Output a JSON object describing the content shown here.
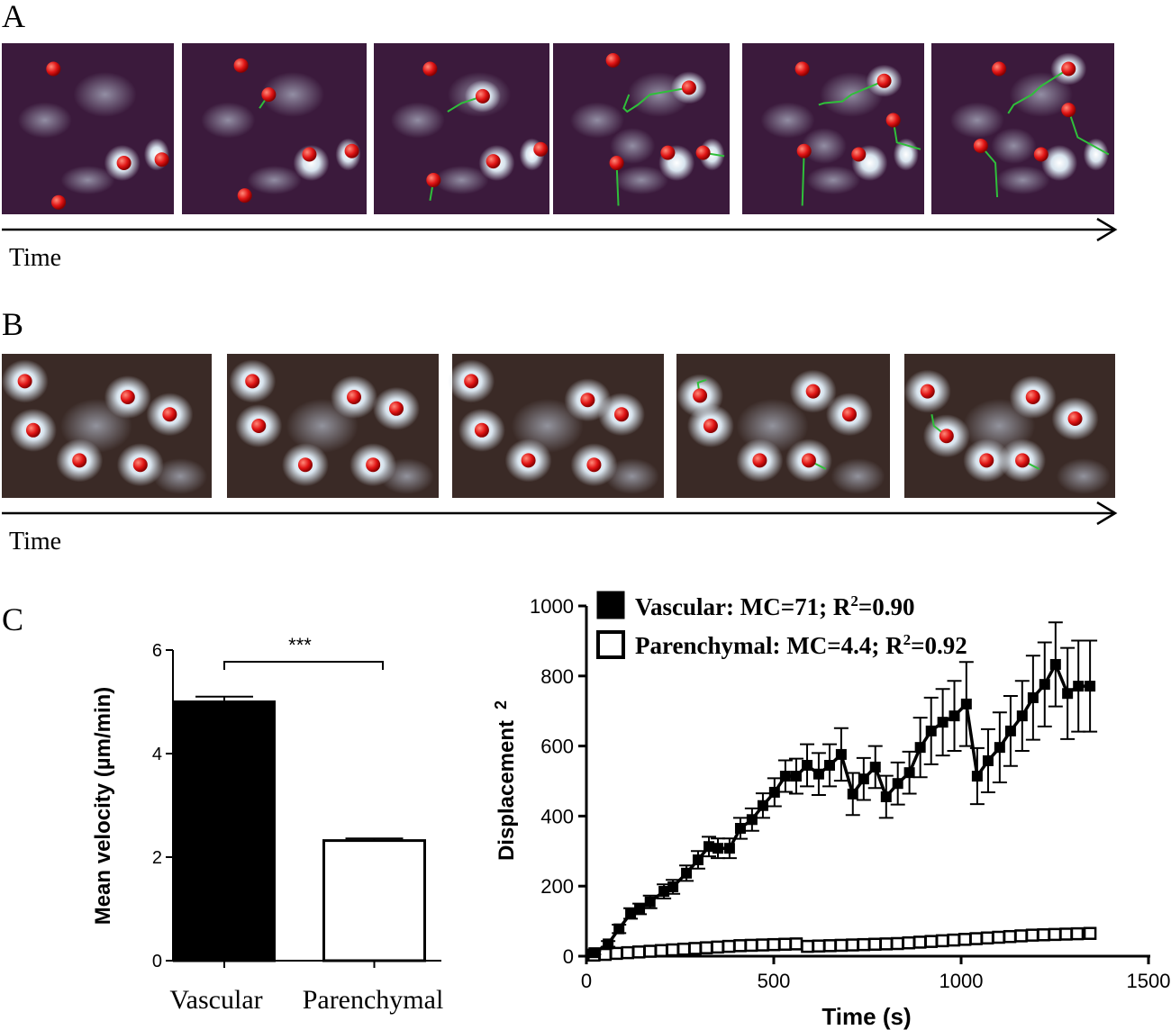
{
  "panel_labels": {
    "a": "A",
    "b": "B",
    "c": "C"
  },
  "panel_a": {
    "time_label": "Time",
    "frame_count": 6
  },
  "panel_b": {
    "time_label": "Time",
    "frame_count": 5
  },
  "colors": {
    "vascular": "#000000",
    "parenchymal": "#ffffff",
    "track": "#2fbf3a",
    "cell_marker": "#e01515"
  },
  "chart_data": [
    {
      "type": "bar",
      "categories": [
        "Vascular",
        "Parenchymal"
      ],
      "values": [
        5.0,
        2.32
      ],
      "errors": [
        0.1,
        0.04
      ],
      "fills": [
        "#000000",
        "#ffffff"
      ],
      "ylabel": "Mean velocity (µm/min)",
      "ylim": [
        0,
        6
      ],
      "yticks": [
        "0",
        "2",
        "4",
        "6"
      ],
      "significance": "***",
      "grid": false
    },
    {
      "type": "line",
      "xlabel": "Time (s)",
      "ylabel": "Displacement",
      "ylabel_superscript": "2",
      "xlim": [
        0,
        1500
      ],
      "ylim": [
        0,
        1000
      ],
      "xticks": [
        "0",
        "500",
        "1000",
        "1500"
      ],
      "yticks": [
        "0",
        "200",
        "400",
        "600",
        "800",
        "1000"
      ],
      "legend_position": "top-left",
      "grid": false,
      "series": [
        {
          "name": "Vascular",
          "legend_prefix": "Vascular: MC=71; R",
          "legend_sup": "2",
          "legend_suffix": "=0.90",
          "marker": "filled-square",
          "x": [
            20,
            58,
            87,
            118,
            142,
            170,
            207,
            231,
            267,
            298,
            327,
            351,
            382,
            411,
            442,
            471,
            502,
            531,
            560,
            589,
            620,
            649,
            680,
            711,
            740,
            771,
            800,
            831,
            862,
            891,
            920,
            951,
            982,
            1014,
            1043,
            1072,
            1103,
            1132,
            1163,
            1192,
            1223,
            1252,
            1284,
            1313,
            1344
          ],
          "y": [
            10,
            35,
            78,
            122,
            135,
            155,
            185,
            198,
            237,
            275,
            313,
            308,
            308,
            365,
            390,
            430,
            468,
            514,
            514,
            545,
            520,
            545,
            576,
            463,
            506,
            540,
            455,
            493,
            524,
            596,
            643,
            668,
            686,
            720,
            514,
            558,
            596,
            643,
            686,
            738,
            776,
            833,
            750,
            771,
            771
          ],
          "error": [
            5,
            8,
            12,
            15,
            15,
            18,
            20,
            20,
            22,
            25,
            28,
            28,
            28,
            30,
            32,
            35,
            40,
            45,
            50,
            60,
            60,
            60,
            75,
            60,
            60,
            60,
            60,
            60,
            60,
            85,
            95,
            95,
            100,
            120,
            80,
            90,
            100,
            100,
            100,
            120,
            120,
            120,
            130,
            130,
            130
          ]
        },
        {
          "name": "Parenchymal",
          "legend_prefix": "Parenchymal: MC=4.4; R",
          "legend_sup": "2",
          "legend_suffix": "=0.92",
          "marker": "open-square",
          "x": [
            20,
            50,
            80,
            110,
            140,
            170,
            200,
            230,
            260,
            290,
            320,
            350,
            380,
            410,
            440,
            470,
            500,
            530,
            560,
            590,
            620,
            650,
            680,
            710,
            740,
            770,
            800,
            830,
            860,
            890,
            920,
            950,
            980,
            1010,
            1040,
            1070,
            1100,
            1130,
            1160,
            1190,
            1220,
            1250,
            1280,
            1310,
            1344
          ],
          "y": [
            3,
            5,
            8,
            10,
            12,
            14,
            16,
            18,
            20,
            22,
            24,
            26,
            28,
            30,
            31,
            32,
            33,
            34,
            35,
            28,
            29,
            30,
            31,
            32,
            33,
            34,
            35,
            36,
            38,
            40,
            42,
            44,
            46,
            48,
            50,
            52,
            54,
            56,
            58,
            60,
            61,
            62,
            63,
            64,
            65
          ]
        }
      ]
    }
  ]
}
